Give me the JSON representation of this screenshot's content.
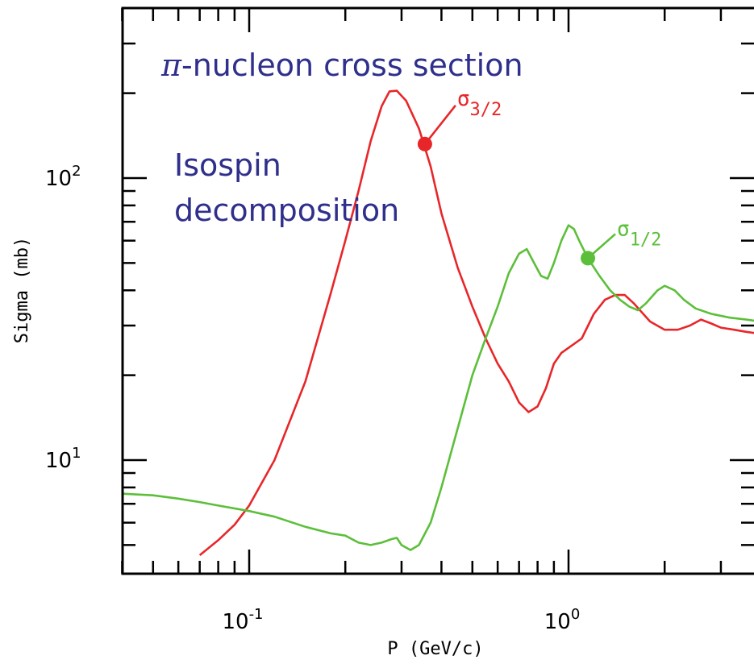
{
  "chart_data": {
    "type": "line",
    "title": "",
    "annotations": {
      "heading_symbol": "π",
      "heading_text": "-nucleon cross section",
      "subtitle_line1": "Isospin",
      "subtitle_line2": "decomposition"
    },
    "xlabel": "P (GeV/c)",
    "ylabel": "Sigma (mb)",
    "x_scale": "log",
    "y_scale": "log",
    "xlim": [
      0.04,
      4.0
    ],
    "ylim": [
      4.6,
      310
    ],
    "x_tick_labels": [
      {
        "base": "10",
        "exp": "-1",
        "value": 0.1
      },
      {
        "base": "10",
        "exp": "0",
        "value": 1.0
      }
    ],
    "y_tick_labels": [
      {
        "base": "10",
        "exp": "1",
        "value": 10
      },
      {
        "base": "10",
        "exp": "2",
        "value": 100
      }
    ],
    "grid": false,
    "series": [
      {
        "name": "σ3/2",
        "label_main": "σ",
        "label_sub": "3/2",
        "color": "#e8262a",
        "marker": {
          "x": 0.355,
          "y": 132
        },
        "points": [
          [
            0.07,
            4.6
          ],
          [
            0.08,
            5.2
          ],
          [
            0.09,
            5.9
          ],
          [
            0.1,
            6.9
          ],
          [
            0.12,
            10.0
          ],
          [
            0.15,
            19
          ],
          [
            0.18,
            39
          ],
          [
            0.2,
            60
          ],
          [
            0.22,
            90
          ],
          [
            0.24,
            135
          ],
          [
            0.26,
            180
          ],
          [
            0.275,
            203
          ],
          [
            0.29,
            204
          ],
          [
            0.31,
            188
          ],
          [
            0.34,
            150
          ],
          [
            0.37,
            110
          ],
          [
            0.4,
            75
          ],
          [
            0.45,
            48
          ],
          [
            0.5,
            35
          ],
          [
            0.55,
            27
          ],
          [
            0.6,
            22
          ],
          [
            0.65,
            19
          ],
          [
            0.7,
            16
          ],
          [
            0.75,
            14.8
          ],
          [
            0.8,
            15.5
          ],
          [
            0.85,
            18
          ],
          [
            0.9,
            22
          ],
          [
            0.95,
            24
          ],
          [
            1.0,
            25
          ],
          [
            1.1,
            27
          ],
          [
            1.2,
            33
          ],
          [
            1.3,
            37
          ],
          [
            1.4,
            38.5
          ],
          [
            1.5,
            38.5
          ],
          [
            1.6,
            36
          ],
          [
            1.8,
            31
          ],
          [
            2.0,
            29
          ],
          [
            2.2,
            29
          ],
          [
            2.4,
            30
          ],
          [
            2.6,
            31.5
          ],
          [
            2.8,
            30.5
          ],
          [
            3.0,
            29.5
          ],
          [
            3.3,
            29
          ],
          [
            3.6,
            28.5
          ],
          [
            4.0,
            28
          ]
        ]
      },
      {
        "name": "σ1/2",
        "label_main": "σ",
        "label_sub": "1/2",
        "color": "#5cbf3a",
        "marker": {
          "x": 1.15,
          "y": 52
        },
        "points": [
          [
            0.04,
            7.6
          ],
          [
            0.05,
            7.5
          ],
          [
            0.06,
            7.3
          ],
          [
            0.07,
            7.1
          ],
          [
            0.08,
            6.9
          ],
          [
            0.1,
            6.6
          ],
          [
            0.12,
            6.3
          ],
          [
            0.15,
            5.8
          ],
          [
            0.18,
            5.5
          ],
          [
            0.2,
            5.4
          ],
          [
            0.22,
            5.1
          ],
          [
            0.24,
            5.0
          ],
          [
            0.26,
            5.1
          ],
          [
            0.28,
            5.25
          ],
          [
            0.29,
            5.3
          ],
          [
            0.3,
            5.0
          ],
          [
            0.32,
            4.8
          ],
          [
            0.34,
            5.0
          ],
          [
            0.37,
            6.0
          ],
          [
            0.4,
            8.0
          ],
          [
            0.45,
            13
          ],
          [
            0.5,
            20
          ],
          [
            0.55,
            27
          ],
          [
            0.6,
            35
          ],
          [
            0.65,
            46
          ],
          [
            0.7,
            54
          ],
          [
            0.74,
            56
          ],
          [
            0.78,
            50
          ],
          [
            0.82,
            45
          ],
          [
            0.86,
            44
          ],
          [
            0.9,
            50
          ],
          [
            0.95,
            60
          ],
          [
            1.0,
            68
          ],
          [
            1.04,
            66
          ],
          [
            1.08,
            60
          ],
          [
            1.15,
            52
          ],
          [
            1.25,
            45
          ],
          [
            1.35,
            40
          ],
          [
            1.45,
            37
          ],
          [
            1.55,
            35
          ],
          [
            1.65,
            34
          ],
          [
            1.75,
            36
          ],
          [
            1.9,
            40
          ],
          [
            2.0,
            41.5
          ],
          [
            2.15,
            40
          ],
          [
            2.3,
            37
          ],
          [
            2.5,
            34.5
          ],
          [
            2.8,
            33
          ],
          [
            3.2,
            32
          ],
          [
            3.6,
            31.5
          ],
          [
            4.0,
            31
          ]
        ]
      }
    ]
  }
}
